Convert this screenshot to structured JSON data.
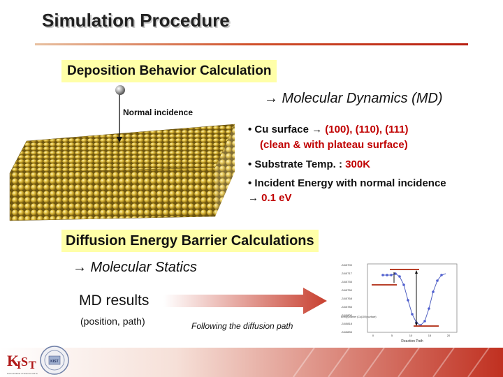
{
  "title": "Simulation Procedure",
  "deposition": {
    "heading": "Deposition Behavior Calculation",
    "method_arrow": "→",
    "method": " Molecular Dynamics (MD)",
    "incidence_label": "Normal incidence",
    "bullets": [
      {
        "prefix": "• Cu surface ",
        "arrow": "→",
        "value": " (100), (110), (111)"
      },
      {
        "text": "(clean & with plateau surface)"
      },
      {
        "prefix": "• Substrate Temp. : ",
        "value": "300K"
      },
      {
        "text": "• Incident Energy with normal incidence"
      },
      {
        "arrow": "→",
        "value": " 0.1 eV"
      }
    ]
  },
  "diffusion": {
    "heading": "Diffusion Energy Barrier Calculations",
    "method_arrow": "→",
    "method": " Molecular Statics",
    "md_results": "MD results",
    "position_path": "(position, path)",
    "following": "Following the diffusion path"
  },
  "plot": {
    "xlabel": "Reaction Path",
    "y_ticks": [
      "-3.60700",
      "-3.60717",
      "-3.60735",
      "-3.60750",
      "-3.60768",
      "-3.60785",
      "-3.60800",
      "-3.60818",
      "-3.60835"
    ],
    "x_ticks": [
      "0",
      "5",
      "10",
      "15",
      "20"
    ],
    "legend": "Energy barrier (Cu(100) surface)"
  },
  "logos": {
    "kist_mark": "KIST",
    "kist_caption": "Korea Institute of Science and Technology",
    "seal_text": "KIST"
  },
  "colors": {
    "title_rule": "#c03020",
    "highlight_box": "#ffffa8",
    "highlight_text": "#c00000",
    "atom": "#d4b030",
    "bar": "#b8402a"
  }
}
